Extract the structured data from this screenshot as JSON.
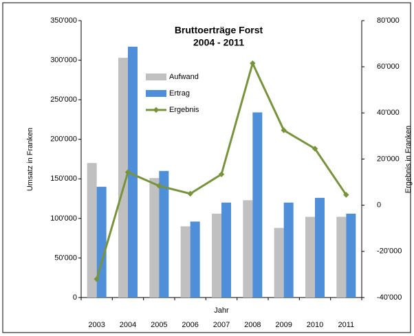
{
  "chart_data": {
    "type": "bar-line",
    "title": "Bruttoerträge Forst",
    "subtitle": "2004 - 2011",
    "x_label": "Jahr",
    "y_label": "Umsatz in Franken",
    "y2_label": "Ergebnis in Franken",
    "categories": [
      "2003",
      "2004",
      "2005",
      "2006",
      "2007",
      "2008",
      "2009",
      "2010",
      "2011"
    ],
    "series": [
      {
        "name": "Aufwand",
        "color": "#c0c0c0",
        "type": "bar",
        "values": [
          170000,
          303000,
          151000,
          90000,
          106000,
          123000,
          88000,
          102000,
          102000
        ]
      },
      {
        "name": "Ertrag",
        "color": "#4f8fd9",
        "type": "bar",
        "values": [
          140000,
          317000,
          160000,
          96000,
          120000,
          234000,
          120000,
          126000,
          106000
        ]
      },
      {
        "name": "Ergebnis",
        "color": "#77933c",
        "type": "line",
        "axis": "y2",
        "values": [
          -32000,
          14300,
          8400,
          5000,
          13400,
          61500,
          32500,
          24500,
          4500
        ]
      }
    ],
    "ylim": [
      0,
      350000
    ],
    "yticks": [
      0,
      {
        "value": 50000,
        "label": "50'000"
      },
      {
        "value": 100000,
        "label": "100'000"
      },
      {
        "value": 150000,
        "label": "150'000"
      },
      {
        "value": 200000,
        "label": "200'000"
      },
      {
        "value": 250000,
        "label": "250'000"
      },
      {
        "value": 300000,
        "label": "300'000"
      },
      {
        "value": 350000,
        "label": "350'000"
      }
    ],
    "y2lim": [
      -40000,
      80000
    ],
    "y2ticks": [
      {
        "value": -40000,
        "label": "-40'000"
      },
      {
        "value": -20000,
        "label": "-20'000"
      },
      0,
      {
        "value": 20000,
        "label": "20'000"
      },
      {
        "value": 40000,
        "label": "40'000"
      },
      {
        "value": 60000,
        "label": "60'000"
      },
      {
        "value": 80000,
        "label": "80'000"
      }
    ]
  }
}
